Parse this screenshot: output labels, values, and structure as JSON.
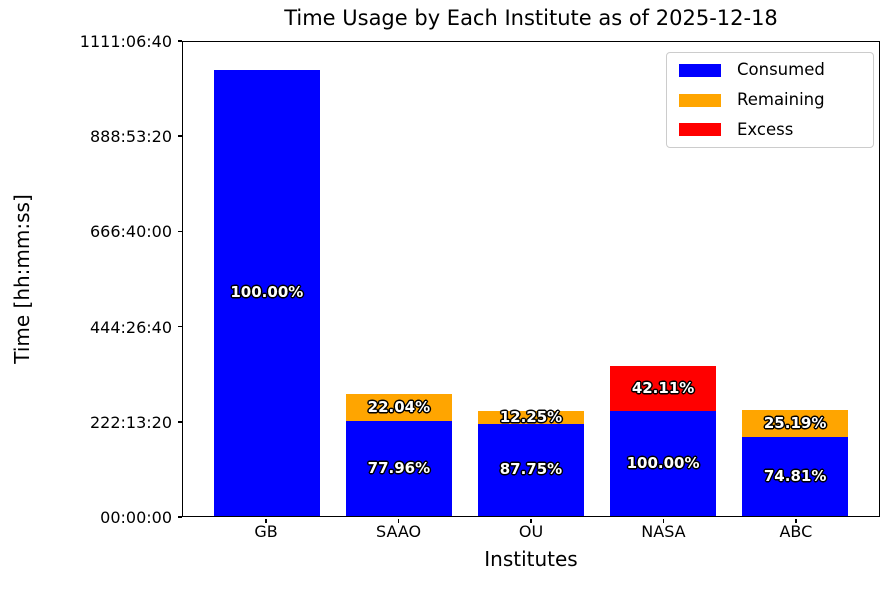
{
  "figure": {
    "title": "Time Usage by Each Institute as of 2025-12-18",
    "xlabel": "Institutes",
    "ylabel": "Time [hh:mm:ss]"
  },
  "chart_data": {
    "type": "bar",
    "stacked": true,
    "title": "Time Usage by Each Institute as of 2025-12-18",
    "xlabel": "Institutes",
    "ylabel": "Time [hh:mm:ss]",
    "categories": [
      "GB",
      "SAAO",
      "OU",
      "NASA",
      "ABC"
    ],
    "y_axis": {
      "unit": "seconds",
      "min": 0,
      "max": 4000000,
      "tick_seconds": [
        0,
        800000,
        1600000,
        2400000,
        3200000,
        4000000
      ],
      "tick_labels": [
        "00:00:00",
        "222:13:20",
        "444:26:40",
        "666:40:00",
        "888:53:20",
        "1111:06:40"
      ],
      "grid": false
    },
    "legend_position": "upper right",
    "series": [
      {
        "name": "Consumed",
        "color": "#0000ff",
        "values_seconds": [
          3764000,
          800000,
          779000,
          890000,
          666500
        ],
        "labels": [
          "100.00%",
          "77.96%",
          "87.75%",
          "100.00%",
          "74.81%"
        ]
      },
      {
        "name": "Remaining",
        "color": "#ffa500",
        "values_seconds": [
          0,
          226200,
          108700,
          0,
          224400
        ],
        "labels": [
          "",
          "22.04%",
          "12.25%",
          "",
          "25.19%"
        ]
      },
      {
        "name": "Excess",
        "color": "#ff0000",
        "values_seconds": [
          0,
          0,
          0,
          374800,
          0
        ],
        "labels": [
          "",
          "",
          "",
          "42.11%",
          ""
        ]
      }
    ]
  }
}
